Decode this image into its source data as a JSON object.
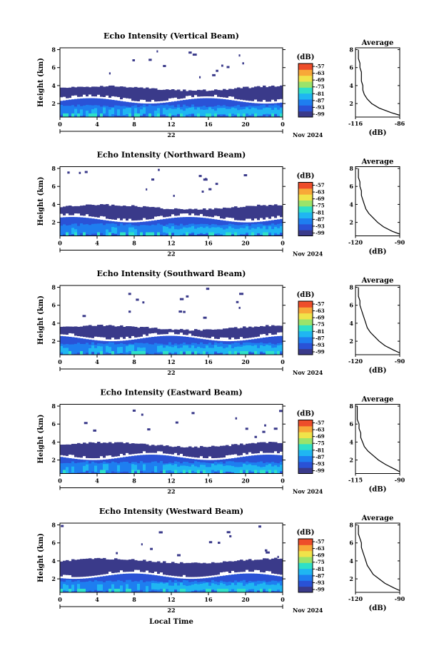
{
  "figure": {
    "x_label": "Local Time",
    "date_label": "Nov 2024",
    "day_label": "22"
  },
  "chart_data": [
    {
      "type": "heatmap",
      "title": "Echo Intensity (Vertical Beam)",
      "ylabel": "Height (km)",
      "xlim": [
        0,
        24
      ],
      "ylim": [
        0.5,
        8.2
      ],
      "x_ticks": [
        "0",
        "4",
        "8",
        "12",
        "16",
        "20",
        "0"
      ],
      "y_ticks": [
        "2",
        "4",
        "6",
        "8"
      ],
      "colorbar": {
        "label": "(dB)",
        "ticks": [
          "-57",
          "-63",
          "-69",
          "-75",
          "-81",
          "-87",
          "-93",
          "-99"
        ]
      },
      "cloud_top_km": 3.7,
      "average": {
        "title": "Average",
        "xlabel": "(dB)",
        "xlim": [
          -116,
          -86
        ],
        "x_ticks": [
          "-116",
          "-86"
        ],
        "y_ticks": [
          "2",
          "4",
          "6",
          "8"
        ],
        "profile": [
          [
            0.7,
            -86
          ],
          [
            1.0,
            -92
          ],
          [
            1.5,
            -100
          ],
          [
            2.0,
            -105
          ],
          [
            2.5,
            -108
          ],
          [
            3.0,
            -110
          ],
          [
            3.5,
            -111
          ],
          [
            4.0,
            -111
          ],
          [
            4.5,
            -112
          ],
          [
            5.0,
            -112
          ],
          [
            5.5,
            -112
          ],
          [
            6.0,
            -113
          ],
          [
            6.5,
            -113
          ],
          [
            7.0,
            -114
          ],
          [
            7.5,
            -114
          ],
          [
            8.0,
            -114
          ]
        ]
      }
    },
    {
      "type": "heatmap",
      "title": "Echo Intensity (Northward Beam)",
      "ylabel": "Height (km)",
      "xlim": [
        0,
        24
      ],
      "ylim": [
        0.5,
        8.2
      ],
      "x_ticks": [
        "0",
        "4",
        "8",
        "12",
        "16",
        "20",
        "0"
      ],
      "y_ticks": [
        "2",
        "4",
        "6",
        "8"
      ],
      "colorbar": {
        "label": "(dB)",
        "ticks": [
          "-57",
          "-63",
          "-69",
          "-75",
          "-81",
          "-87",
          "-93",
          "-99"
        ]
      },
      "cloud_top_km": 3.7,
      "average": {
        "title": "Average",
        "xlabel": "(dB)",
        "xlim": [
          -120,
          -90
        ],
        "x_ticks": [
          "-120",
          "-90"
        ],
        "y_ticks": [
          "2",
          "4",
          "6",
          "8"
        ],
        "profile": [
          [
            0.7,
            -90
          ],
          [
            1.0,
            -95
          ],
          [
            1.5,
            -101
          ],
          [
            2.0,
            -105
          ],
          [
            2.5,
            -108
          ],
          [
            3.0,
            -111
          ],
          [
            3.5,
            -113
          ],
          [
            4.0,
            -114
          ],
          [
            4.5,
            -115
          ],
          [
            5.0,
            -116
          ],
          [
            5.5,
            -116
          ],
          [
            6.0,
            -117
          ],
          [
            6.5,
            -117
          ],
          [
            7.0,
            -118
          ],
          [
            7.5,
            -118
          ],
          [
            8.0,
            -118
          ]
        ]
      }
    },
    {
      "type": "heatmap",
      "title": "Echo Intensity (Southward Beam)",
      "ylabel": "Height (km)",
      "xlim": [
        0,
        24
      ],
      "ylim": [
        0.5,
        8.2
      ],
      "x_ticks": [
        "0",
        "4",
        "8",
        "12",
        "16",
        "20",
        "0"
      ],
      "y_ticks": [
        "2",
        "4",
        "6",
        "8"
      ],
      "colorbar": {
        "label": "(dB)",
        "ticks": [
          "-57",
          "-63",
          "-69",
          "-75",
          "-81",
          "-87",
          "-93",
          "-99"
        ]
      },
      "cloud_top_km": 3.5,
      "average": {
        "title": "Average",
        "xlabel": "(dB)",
        "xlim": [
          -120,
          -90
        ],
        "x_ticks": [
          "-120",
          "-90"
        ],
        "y_ticks": [
          "2",
          "4",
          "6",
          "8"
        ],
        "profile": [
          [
            0.7,
            -90
          ],
          [
            1.0,
            -94
          ],
          [
            1.5,
            -100
          ],
          [
            2.0,
            -104
          ],
          [
            2.5,
            -107
          ],
          [
            3.0,
            -110
          ],
          [
            3.5,
            -112
          ],
          [
            4.0,
            -113
          ],
          [
            4.5,
            -114
          ],
          [
            5.0,
            -115
          ],
          [
            5.5,
            -116
          ],
          [
            6.0,
            -117
          ],
          [
            6.5,
            -117
          ],
          [
            7.0,
            -118
          ],
          [
            7.5,
            -118
          ],
          [
            8.0,
            -118
          ]
        ]
      }
    },
    {
      "type": "heatmap",
      "title": "Echo Intensity (Eastward Beam)",
      "ylabel": "Height (km)",
      "xlim": [
        0,
        24
      ],
      "ylim": [
        0.5,
        8.2
      ],
      "x_ticks": [
        "0",
        "4",
        "8",
        "12",
        "16",
        "20",
        "0"
      ],
      "y_ticks": [
        "2",
        "4",
        "6",
        "8"
      ],
      "colorbar": {
        "label": "(dB)",
        "ticks": [
          "-57",
          "-63",
          "-69",
          "-75",
          "-81",
          "-87",
          "-93",
          "-99"
        ]
      },
      "cloud_top_km": 3.7,
      "average": {
        "title": "Average",
        "xlabel": "(dB)",
        "xlim": [
          -115,
          -90
        ],
        "x_ticks": [
          "-115",
          "-90"
        ],
        "y_ticks": [
          "2",
          "4",
          "6",
          "8"
        ],
        "profile": [
          [
            0.7,
            -90
          ],
          [
            1.0,
            -93
          ],
          [
            1.5,
            -98
          ],
          [
            2.0,
            -102
          ],
          [
            2.5,
            -105
          ],
          [
            3.0,
            -108
          ],
          [
            3.5,
            -110
          ],
          [
            4.0,
            -111
          ],
          [
            4.5,
            -112
          ],
          [
            5.0,
            -112
          ],
          [
            5.5,
            -113
          ],
          [
            6.0,
            -113
          ],
          [
            6.5,
            -114
          ],
          [
            7.0,
            -114
          ],
          [
            7.5,
            -114
          ],
          [
            8.0,
            -114
          ]
        ]
      }
    },
    {
      "type": "heatmap",
      "title": "Echo Intensity (Westward Beam)",
      "ylabel": "Height (km)",
      "xlim": [
        0,
        24
      ],
      "ylim": [
        0.5,
        8.2
      ],
      "x_ticks": [
        "0",
        "4",
        "8",
        "12",
        "16",
        "20",
        "0"
      ],
      "y_ticks": [
        "2",
        "4",
        "6",
        "8"
      ],
      "colorbar": {
        "label": "(dB)",
        "ticks": [
          "-57",
          "-63",
          "-69",
          "-75",
          "-81",
          "-87",
          "-93",
          "-99"
        ]
      },
      "cloud_top_km": 4.0,
      "average": {
        "title": "Average",
        "xlabel": "(dB)",
        "xlim": [
          -120,
          -90
        ],
        "x_ticks": [
          "-120",
          "-90"
        ],
        "y_ticks": [
          "2",
          "4",
          "6",
          "8"
        ],
        "profile": [
          [
            0.7,
            -90
          ],
          [
            1.0,
            -94
          ],
          [
            1.5,
            -100
          ],
          [
            2.0,
            -104
          ],
          [
            2.5,
            -108
          ],
          [
            3.0,
            -110
          ],
          [
            3.5,
            -112
          ],
          [
            4.0,
            -113
          ],
          [
            4.5,
            -114
          ],
          [
            5.0,
            -115
          ],
          [
            5.5,
            -116
          ],
          [
            6.0,
            -116
          ],
          [
            6.5,
            -117
          ],
          [
            7.0,
            -118
          ],
          [
            7.5,
            -118
          ],
          [
            8.0,
            -118
          ]
        ]
      }
    }
  ],
  "colors": {
    "scale": [
      "#3a3a8a",
      "#2a52d6",
      "#1e7ef0",
      "#1fb6f2",
      "#2fe0c8",
      "#9be36a",
      "#f0e34a",
      "#f8a838",
      "#ee4d2a"
    ]
  }
}
